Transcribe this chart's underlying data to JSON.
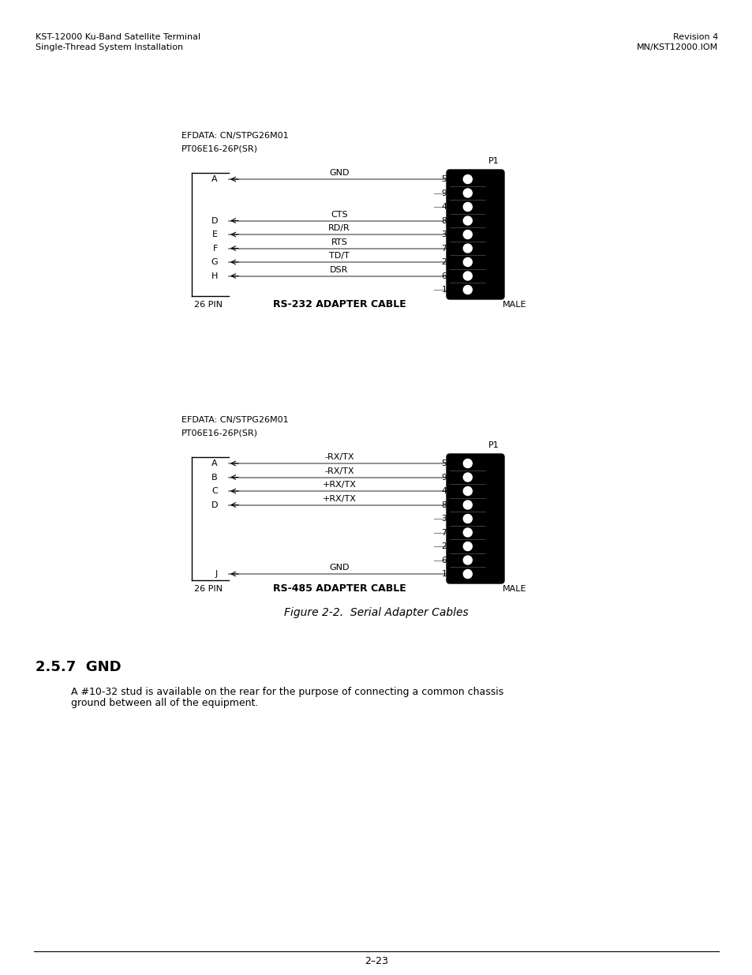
{
  "bg_color": "#ffffff",
  "header_left_line1": "KST-12000 Ku-Band Satellite Terminal",
  "header_left_line2": "Single-Thread System Installation",
  "header_right_line1": "Revision 4",
  "header_right_line2": "MN/KST12000.IOM",
  "figure_caption": "Figure 2-2.  Serial Adapter Cables",
  "section_title": "2.5.7  GND",
  "section_body": "A #10-32 stud is available on the rear for the purpose of connecting a common chassis\nground between all of the equipment.",
  "footer_text": "2–23",
  "diag1": {
    "efdata_label": "EFDATA: CN/STPG26M01",
    "pt_label": "PT06E16-26P(SR)",
    "p1_label": "P1",
    "left_label": "26 PIN",
    "right_label": "MALE",
    "cable_label": "RS-232 ADAPTER CABLE",
    "right_pin_numbers": [
      "5",
      "9",
      "4",
      "8",
      "3",
      "7",
      "2",
      "6",
      "1"
    ],
    "connections": [
      {
        "left": "A",
        "signal": "GND",
        "right_num": "5",
        "has_line": true
      },
      {
        "left": null,
        "signal": null,
        "right_num": "9",
        "has_line": false
      },
      {
        "left": null,
        "signal": null,
        "right_num": "4",
        "has_line": false
      },
      {
        "left": "D",
        "signal": "CTS",
        "right_num": "8",
        "has_line": true
      },
      {
        "left": "E",
        "signal": "RD/R",
        "right_num": "3",
        "has_line": true
      },
      {
        "left": "F",
        "signal": "RTS",
        "right_num": "7",
        "has_line": true
      },
      {
        "left": "G",
        "signal": "TD/T",
        "right_num": "2",
        "has_line": true
      },
      {
        "left": "H",
        "signal": "DSR",
        "right_num": "6",
        "has_line": true
      },
      {
        "left": null,
        "signal": null,
        "right_num": "1",
        "has_line": false
      }
    ]
  },
  "diag2": {
    "efdata_label": "EFDATA: CN/STPG26M01",
    "pt_label": "PT06E16-26P(SR)",
    "p1_label": "P1",
    "left_label": "26 PIN",
    "right_label": "MALE",
    "cable_label": "RS-485 ADAPTER CABLE",
    "right_pin_numbers": [
      "5",
      "9",
      "4",
      "8",
      "3",
      "7",
      "2",
      "6",
      "1"
    ],
    "connections": [
      {
        "left": "A",
        "signal": "-RX/TX",
        "right_num": "5",
        "has_line": true
      },
      {
        "left": "B",
        "signal": "-RX/TX",
        "right_num": "9",
        "has_line": true
      },
      {
        "left": "C",
        "signal": "+RX/TX",
        "right_num": "4",
        "has_line": true
      },
      {
        "left": "D",
        "signal": "+RX/TX",
        "right_num": "8",
        "has_line": true
      },
      {
        "left": null,
        "signal": null,
        "right_num": "3",
        "has_line": false
      },
      {
        "left": null,
        "signal": null,
        "right_num": "7",
        "has_line": false
      },
      {
        "left": null,
        "signal": null,
        "right_num": "2",
        "has_line": false
      },
      {
        "left": null,
        "signal": null,
        "right_num": "6",
        "has_line": false
      },
      {
        "left": "J",
        "signal": "GND",
        "right_num": "1",
        "has_line": true
      }
    ]
  }
}
